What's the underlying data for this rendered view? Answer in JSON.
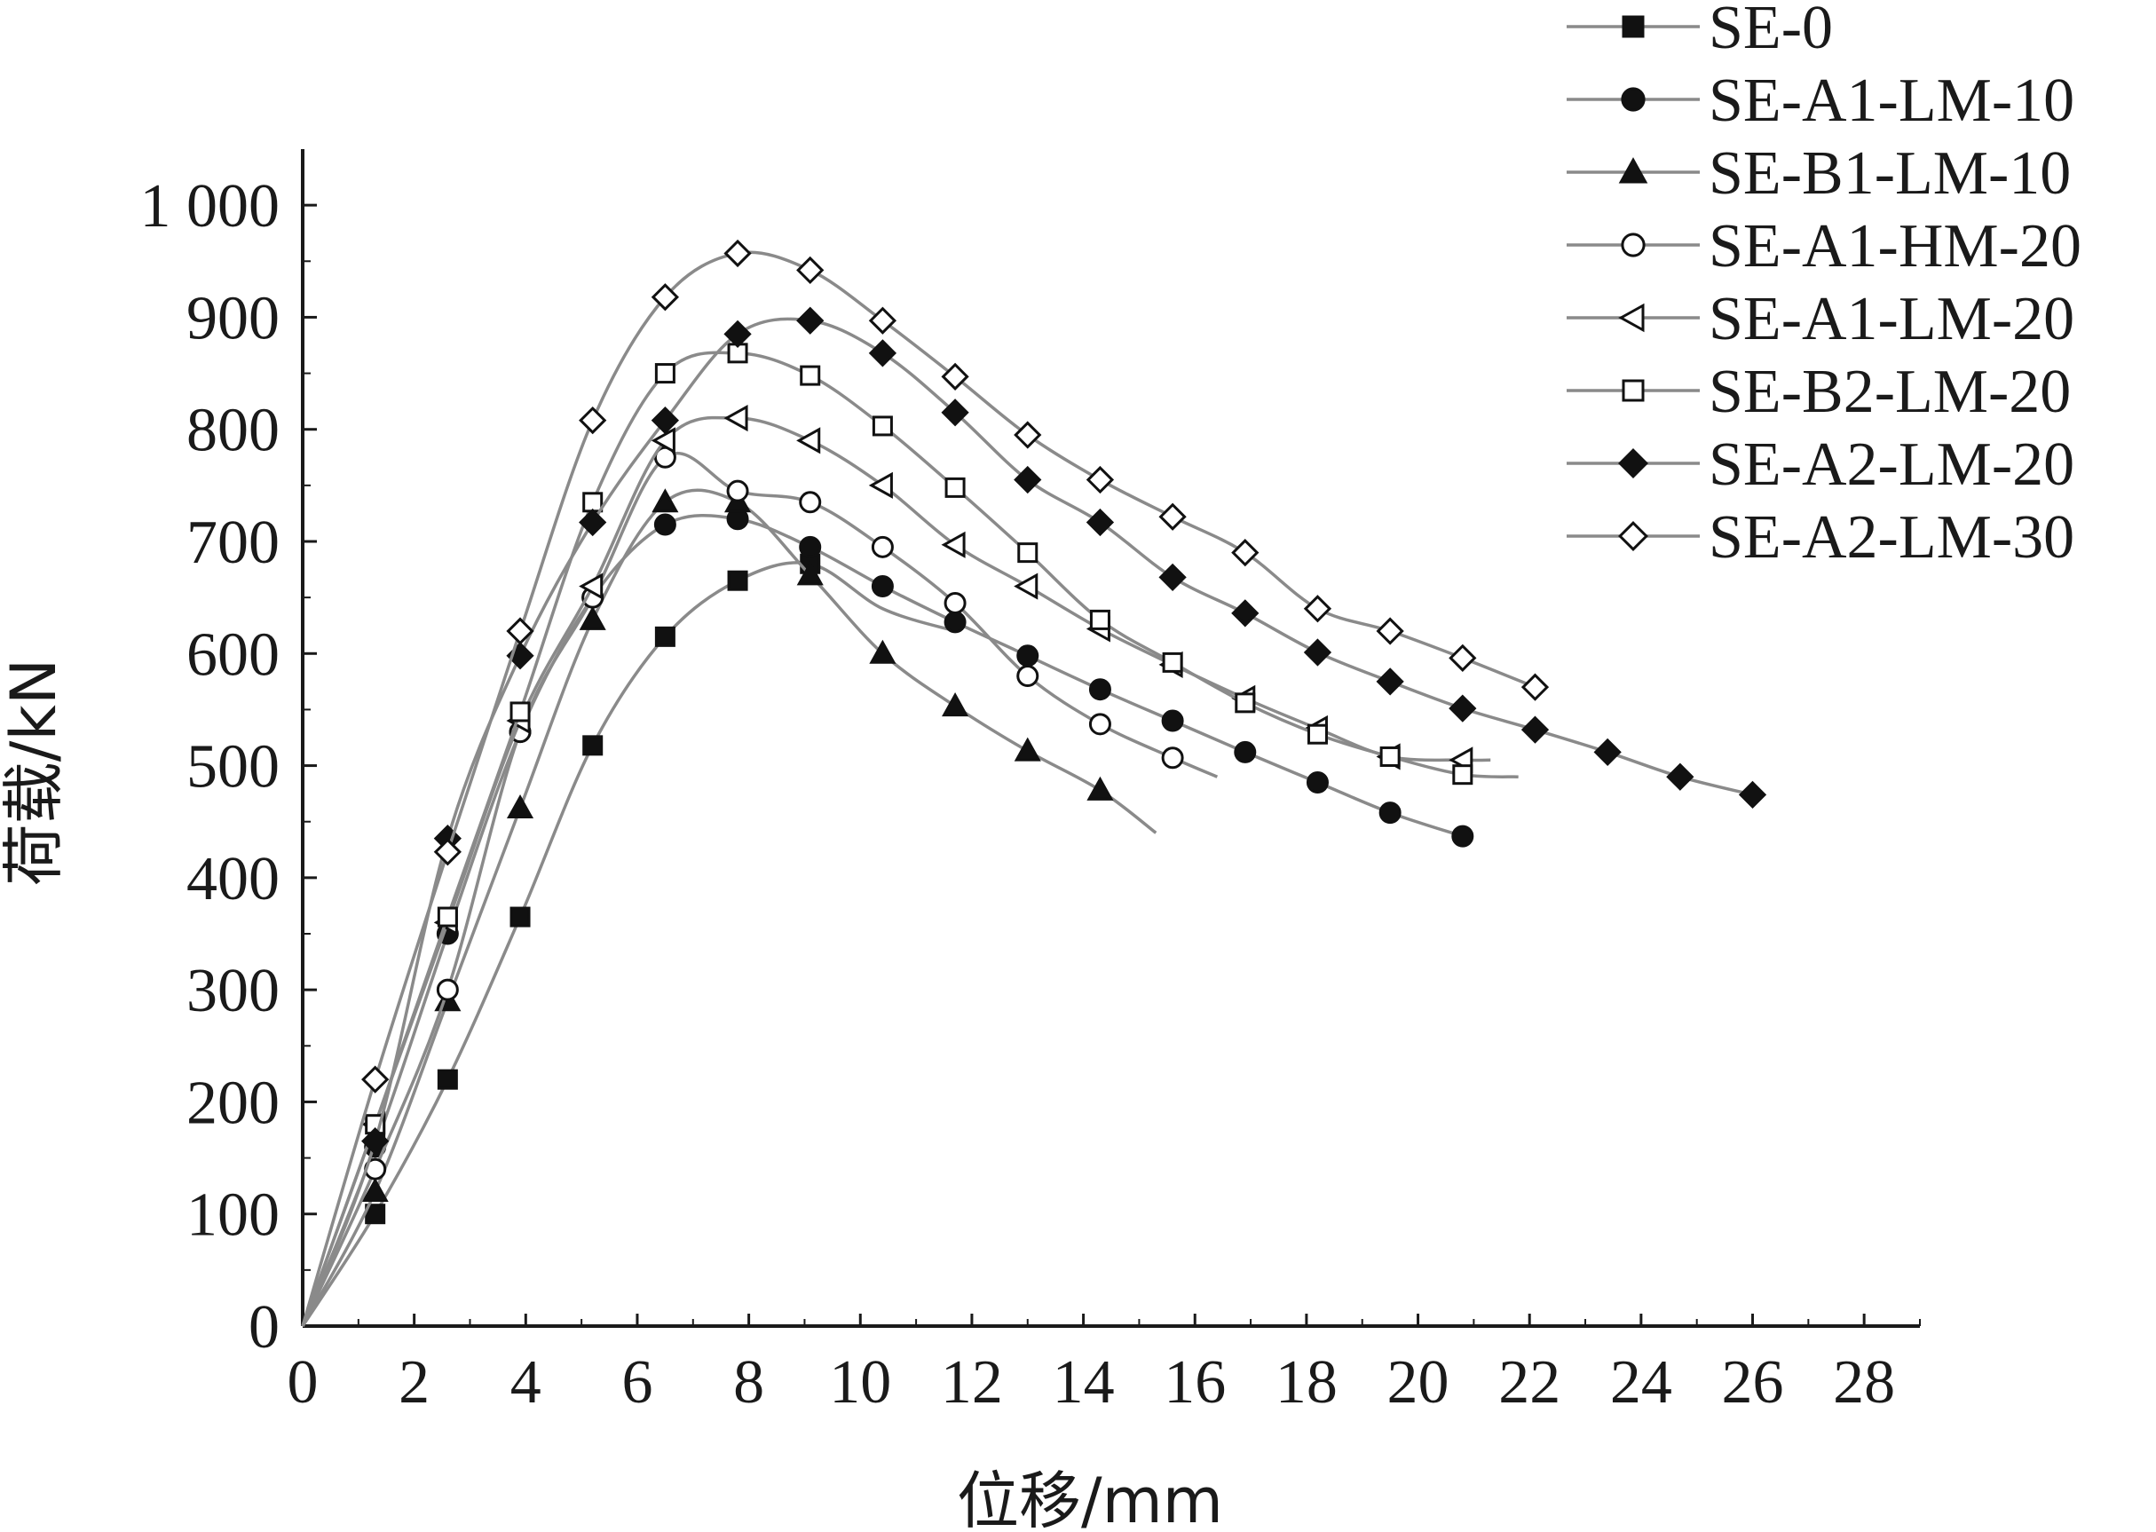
{
  "chart_data": {
    "type": "line",
    "xlabel": "位移/mm",
    "ylabel": "荷载/kN",
    "xlim": [
      0,
      29
    ],
    "ylim": [
      0,
      1050
    ],
    "x_ticks": [
      0,
      2,
      4,
      6,
      8,
      10,
      12,
      14,
      16,
      18,
      20,
      22,
      24,
      26,
      28
    ],
    "x_tick_labels": [
      "0",
      "2",
      "4",
      "6",
      "8",
      "10",
      "12",
      "14",
      "16",
      "18",
      "20",
      "22",
      "24",
      "26",
      "28"
    ],
    "y_ticks": [
      0,
      100,
      200,
      300,
      400,
      500,
      600,
      700,
      800,
      900,
      1000
    ],
    "y_tick_labels": [
      "0",
      "100",
      "200",
      "300",
      "400",
      "500",
      "600",
      "700",
      "800",
      "900",
      "1 000"
    ],
    "grid": false,
    "legend_position": "top-right",
    "line_color": "#8a8a8a",
    "marker_color": "#111111",
    "series": [
      {
        "name": "SE-0",
        "marker": "square",
        "filled": true,
        "x": [
          0,
          1.3,
          2.6,
          3.9,
          5.2,
          6.5,
          7.8,
          9.1
        ],
        "y": [
          0,
          100,
          220,
          365,
          518,
          615,
          665,
          680
        ],
        "tail": [
          [
            10.4,
            640
          ],
          [
            11.7,
            620
          ]
        ]
      },
      {
        "name": "SE-A1-LM-10",
        "marker": "circle",
        "filled": true,
        "x": [
          0,
          1.3,
          2.6,
          3.9,
          5.2,
          6.5,
          7.8,
          9.1,
          10.4,
          11.7,
          13.0,
          14.3,
          15.6,
          16.9,
          18.2,
          19.5,
          20.8
        ],
        "y": [
          0,
          160,
          350,
          530,
          650,
          715,
          720,
          695,
          660,
          628,
          598,
          568,
          540,
          512,
          485,
          458,
          437
        ],
        "tail": []
      },
      {
        "name": "SE-B1-LM-10",
        "marker": "triangle-up",
        "filled": true,
        "x": [
          0,
          1.3,
          2.6,
          3.9,
          5.2,
          6.5,
          7.8,
          9.1,
          10.4,
          11.7,
          13.0,
          14.3
        ],
        "y": [
          0,
          120,
          290,
          462,
          630,
          735,
          735,
          670,
          600,
          553,
          513,
          478
        ],
        "tail": [
          [
            15.3,
            440
          ]
        ]
      },
      {
        "name": "SE-A1-HM-20",
        "marker": "circle",
        "filled": false,
        "x": [
          0,
          1.3,
          2.6,
          3.9,
          5.2,
          6.5,
          7.8,
          9.1,
          10.4,
          11.7,
          13.0,
          14.3,
          15.6
        ],
        "y": [
          0,
          140,
          300,
          530,
          650,
          775,
          745,
          735,
          695,
          645,
          580,
          537,
          507
        ],
        "tail": [
          [
            16.4,
            490
          ]
        ]
      },
      {
        "name": "SE-A1-LM-20",
        "marker": "triangle-left",
        "filled": false,
        "x": [
          0,
          1.3,
          2.6,
          3.9,
          5.2,
          6.5,
          7.8,
          9.1,
          10.4,
          11.7,
          13.0,
          14.3,
          15.6,
          16.9,
          18.2,
          19.5,
          20.8
        ],
        "y": [
          0,
          180,
          360,
          540,
          660,
          790,
          810,
          790,
          750,
          697,
          660,
          622,
          590,
          560,
          533,
          508,
          505
        ],
        "tail": [
          [
            21.3,
            505
          ]
        ]
      },
      {
        "name": "SE-B2-LM-20",
        "marker": "square",
        "filled": false,
        "x": [
          0,
          1.3,
          2.6,
          3.9,
          5.2,
          6.5,
          7.8,
          9.1,
          10.4,
          11.7,
          13.0,
          14.3,
          15.6,
          16.9,
          18.2,
          19.5,
          20.8
        ],
        "y": [
          0,
          180,
          365,
          548,
          735,
          850,
          868,
          848,
          803,
          748,
          690,
          630,
          592,
          556,
          528,
          508,
          492
        ],
        "tail": [
          [
            21.8,
            490
          ]
        ]
      },
      {
        "name": "SE-A2-LM-20",
        "marker": "diamond",
        "filled": true,
        "x": [
          0,
          1.3,
          2.6,
          3.9,
          5.2,
          6.5,
          7.8,
          9.1,
          10.4,
          11.7,
          13.0,
          14.3,
          15.6,
          16.9,
          18.2,
          19.5,
          20.8,
          22.1,
          23.4,
          24.7,
          26.0
        ],
        "y": [
          0,
          165,
          435,
          598,
          717,
          808,
          885,
          897,
          868,
          815,
          755,
          717,
          668,
          636,
          601,
          575,
          551,
          532,
          512,
          490,
          474
        ],
        "tail": []
      },
      {
        "name": "SE-A2-LM-30",
        "marker": "diamond",
        "filled": false,
        "x": [
          0,
          1.3,
          2.6,
          3.9,
          5.2,
          6.5,
          7.8,
          9.1,
          10.4,
          11.7,
          13.0,
          14.3,
          15.6,
          16.9,
          18.2,
          19.5,
          20.8,
          22.1
        ],
        "y": [
          0,
          220,
          423,
          620,
          808,
          918,
          957,
          942,
          897,
          847,
          795,
          755,
          722,
          690,
          640,
          620,
          596,
          570
        ],
        "tail": []
      }
    ]
  }
}
